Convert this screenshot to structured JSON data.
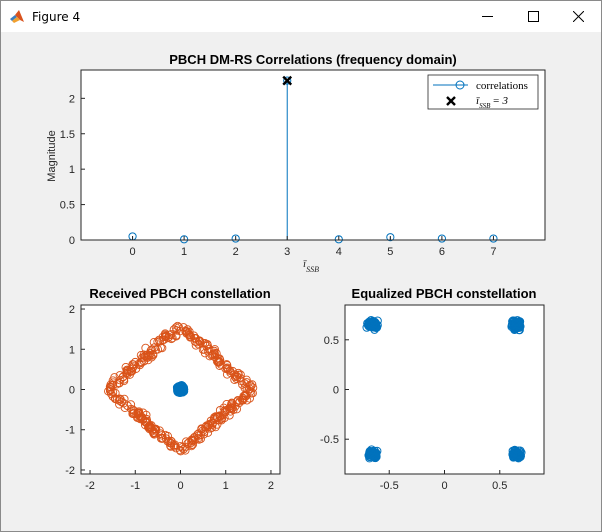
{
  "window": {
    "title": "Figure 4",
    "controls": {
      "minimize": "minimize-icon",
      "maximize": "maximize-icon",
      "close": "close-icon"
    }
  },
  "colors": {
    "matlab_blue": "#0072BD",
    "matlab_orange": "#D95319",
    "axis": "#262626",
    "plot_bg": "#ffffff",
    "figure_bg": "#f0f0f0"
  },
  "chart_data": [
    {
      "type": "stem",
      "title": "PBCH DM-RS Correlations (frequency domain)",
      "xlabel": "ī_SSB",
      "ylabel": "Magnitude",
      "x": [
        0,
        1,
        2,
        3,
        4,
        5,
        6,
        7
      ],
      "values": [
        0.05,
        0.01,
        0.02,
        2.25,
        0.01,
        0.04,
        0.02,
        0.02
      ],
      "xlim": [
        -1,
        8
      ],
      "ylim": [
        0,
        2.4
      ],
      "xticks": [
        "0",
        "1",
        "2",
        "3",
        "4",
        "5",
        "6",
        "7"
      ],
      "yticks": [
        "0",
        "0.5",
        "1",
        "1.5",
        "2"
      ],
      "grid": false,
      "series": [
        {
          "name": "correlations",
          "marker": "circle",
          "color": "#0072BD"
        },
        {
          "name": "ī_SSB = 3",
          "marker": "x",
          "color": "#000000",
          "x": 3,
          "y": 2.25
        }
      ],
      "legend": {
        "placement": "top-right",
        "entries": [
          "correlations",
          "ī_SSB = 3"
        ]
      }
    },
    {
      "type": "scatter",
      "title": "Received PBCH constellation",
      "xlim": [
        -2.2,
        2.2
      ],
      "ylim": [
        -2.1,
        2.1
      ],
      "xticks": [
        "-2",
        "-1",
        "0",
        "1",
        "2"
      ],
      "yticks": [
        "-2",
        "-1",
        "0",
        "1",
        "2"
      ],
      "grid": false,
      "series": [
        {
          "marker": "circle",
          "color": "#D95319",
          "shape": "rotated-square ring",
          "radius": 1.7
        },
        {
          "marker": "circle",
          "color": "#0072BD",
          "shape": "cluster",
          "center": [
            0,
            0
          ],
          "spread": 0.12
        }
      ]
    },
    {
      "type": "scatter",
      "title": "Equalized PBCH constellation",
      "xlim": [
        -0.9,
        0.9
      ],
      "ylim": [
        -0.85,
        0.85
      ],
      "xticks": [
        "-0.5",
        "0",
        "0.5"
      ],
      "yticks": [
        "-0.5",
        "0",
        "0.5"
      ],
      "grid": false,
      "series": [
        {
          "marker": "circle",
          "color": "#0072BD",
          "clusters": [
            [
              -0.65,
              0.65
            ],
            [
              0.65,
              0.65
            ],
            [
              -0.65,
              -0.65
            ],
            [
              0.65,
              -0.65
            ]
          ]
        }
      ]
    }
  ]
}
